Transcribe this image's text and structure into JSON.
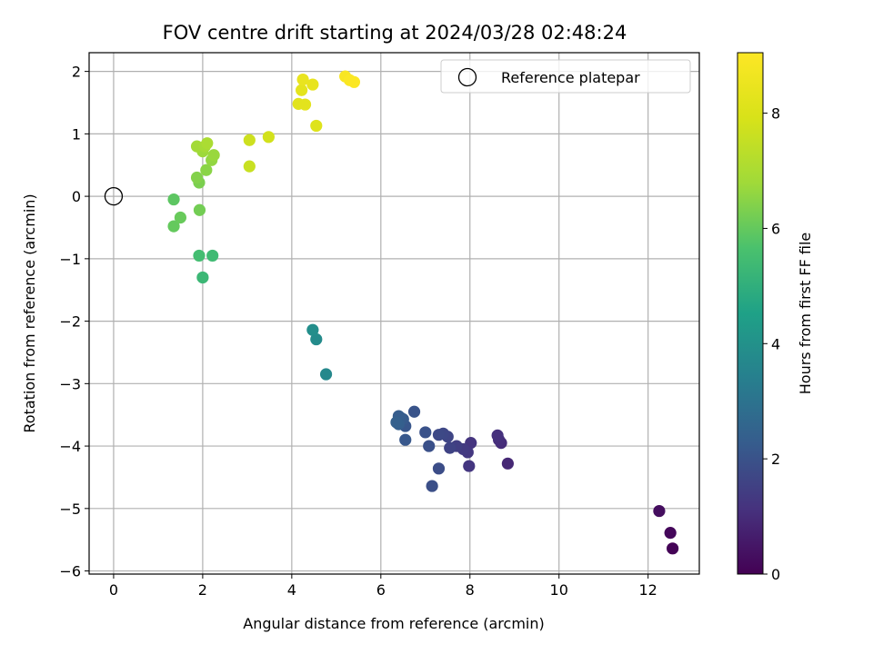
{
  "chart_data": {
    "type": "scatter",
    "title": "FOV centre drift starting at 2024/03/28 02:48:24",
    "xlabel": "Angular distance from reference (arcmin)",
    "ylabel": "Rotation from reference (arcmin)",
    "xlim": [
      -0.55,
      13.15
    ],
    "ylim": [
      -6.05,
      2.3
    ],
    "xticks": [
      0,
      2,
      4,
      6,
      8,
      10,
      12
    ],
    "yticks": [
      -6,
      -5,
      -4,
      -3,
      -2,
      -1,
      0,
      1,
      2
    ],
    "grid": true,
    "colormap": "viridis",
    "colorbar": {
      "label": "Hours from first FF file",
      "range": [
        0,
        9.05
      ],
      "ticks": [
        0,
        2,
        4,
        6,
        8
      ]
    },
    "legend": {
      "placement": "upper-right",
      "entries": [
        {
          "label": "Reference platepar",
          "marker": "open-circle"
        }
      ]
    },
    "reference_point": {
      "x": 0,
      "y": 0
    },
    "points": [
      {
        "x": 12.55,
        "y": -5.64,
        "hours": 0.05
      },
      {
        "x": 12.5,
        "y": -5.39,
        "hours": 0.15
      },
      {
        "x": 12.25,
        "y": -5.04,
        "hours": 0.3
      },
      {
        "x": 8.85,
        "y": -4.28,
        "hours": 0.9
      },
      {
        "x": 8.7,
        "y": -3.95,
        "hours": 1.0
      },
      {
        "x": 8.65,
        "y": -3.9,
        "hours": 1.05
      },
      {
        "x": 8.62,
        "y": -3.83,
        "hours": 1.1
      },
      {
        "x": 8.02,
        "y": -3.95,
        "hours": 1.2
      },
      {
        "x": 7.98,
        "y": -4.32,
        "hours": 1.25
      },
      {
        "x": 7.95,
        "y": -4.1,
        "hours": 1.3
      },
      {
        "x": 7.85,
        "y": -4.05,
        "hours": 1.35
      },
      {
        "x": 7.7,
        "y": -4.0,
        "hours": 1.45
      },
      {
        "x": 7.55,
        "y": -4.03,
        "hours": 1.6
      },
      {
        "x": 7.5,
        "y": -3.85,
        "hours": 1.65
      },
      {
        "x": 7.4,
        "y": -3.8,
        "hours": 1.7
      },
      {
        "x": 7.3,
        "y": -3.82,
        "hours": 1.75
      },
      {
        "x": 7.3,
        "y": -4.36,
        "hours": 1.85
      },
      {
        "x": 7.15,
        "y": -4.64,
        "hours": 1.9
      },
      {
        "x": 7.08,
        "y": -4.0,
        "hours": 1.95
      },
      {
        "x": 7.0,
        "y": -3.78,
        "hours": 2.0
      },
      {
        "x": 6.75,
        "y": -3.45,
        "hours": 2.05
      },
      {
        "x": 6.55,
        "y": -3.68,
        "hours": 2.1
      },
      {
        "x": 6.55,
        "y": -3.9,
        "hours": 2.15
      },
      {
        "x": 6.5,
        "y": -3.57,
        "hours": 2.2
      },
      {
        "x": 6.45,
        "y": -3.55,
        "hours": 2.25
      },
      {
        "x": 6.4,
        "y": -3.52,
        "hours": 2.3
      },
      {
        "x": 6.4,
        "y": -3.65,
        "hours": 2.35
      },
      {
        "x": 6.35,
        "y": -3.62,
        "hours": 2.4
      },
      {
        "x": 4.77,
        "y": -2.85,
        "hours": 3.7
      },
      {
        "x": 4.55,
        "y": -2.29,
        "hours": 3.8
      },
      {
        "x": 4.47,
        "y": -2.14,
        "hours": 3.9
      },
      {
        "x": 2.0,
        "y": -1.3,
        "hours": 5.3
      },
      {
        "x": 2.22,
        "y": -0.95,
        "hours": 5.4
      },
      {
        "x": 1.92,
        "y": -0.95,
        "hours": 5.5
      },
      {
        "x": 1.35,
        "y": -0.05,
        "hours": 5.9
      },
      {
        "x": 1.35,
        "y": -0.48,
        "hours": 6.0
      },
      {
        "x": 1.5,
        "y": -0.34,
        "hours": 6.05
      },
      {
        "x": 1.93,
        "y": -0.22,
        "hours": 6.2
      },
      {
        "x": 1.92,
        "y": 0.22,
        "hours": 6.3
      },
      {
        "x": 1.87,
        "y": 0.3,
        "hours": 6.4
      },
      {
        "x": 2.08,
        "y": 0.42,
        "hours": 6.5
      },
      {
        "x": 2.2,
        "y": 0.58,
        "hours": 6.6
      },
      {
        "x": 2.25,
        "y": 0.66,
        "hours": 6.7
      },
      {
        "x": 2.0,
        "y": 0.72,
        "hours": 6.75
      },
      {
        "x": 1.87,
        "y": 0.8,
        "hours": 6.85
      },
      {
        "x": 2.05,
        "y": 0.8,
        "hours": 6.9
      },
      {
        "x": 2.1,
        "y": 0.85,
        "hours": 7.0
      },
      {
        "x": 3.05,
        "y": 0.48,
        "hours": 7.6
      },
      {
        "x": 3.05,
        "y": 0.9,
        "hours": 7.7
      },
      {
        "x": 3.48,
        "y": 0.95,
        "hours": 7.8
      },
      {
        "x": 4.55,
        "y": 1.13,
        "hours": 8.1
      },
      {
        "x": 4.15,
        "y": 1.48,
        "hours": 8.2
      },
      {
        "x": 4.3,
        "y": 1.47,
        "hours": 8.25
      },
      {
        "x": 4.22,
        "y": 1.7,
        "hours": 8.3
      },
      {
        "x": 4.47,
        "y": 1.79,
        "hours": 8.4
      },
      {
        "x": 4.25,
        "y": 1.87,
        "hours": 8.45
      },
      {
        "x": 5.2,
        "y": 1.92,
        "hours": 8.9
      },
      {
        "x": 5.3,
        "y": 1.86,
        "hours": 8.95
      },
      {
        "x": 5.4,
        "y": 1.83,
        "hours": 9.0
      }
    ]
  }
}
